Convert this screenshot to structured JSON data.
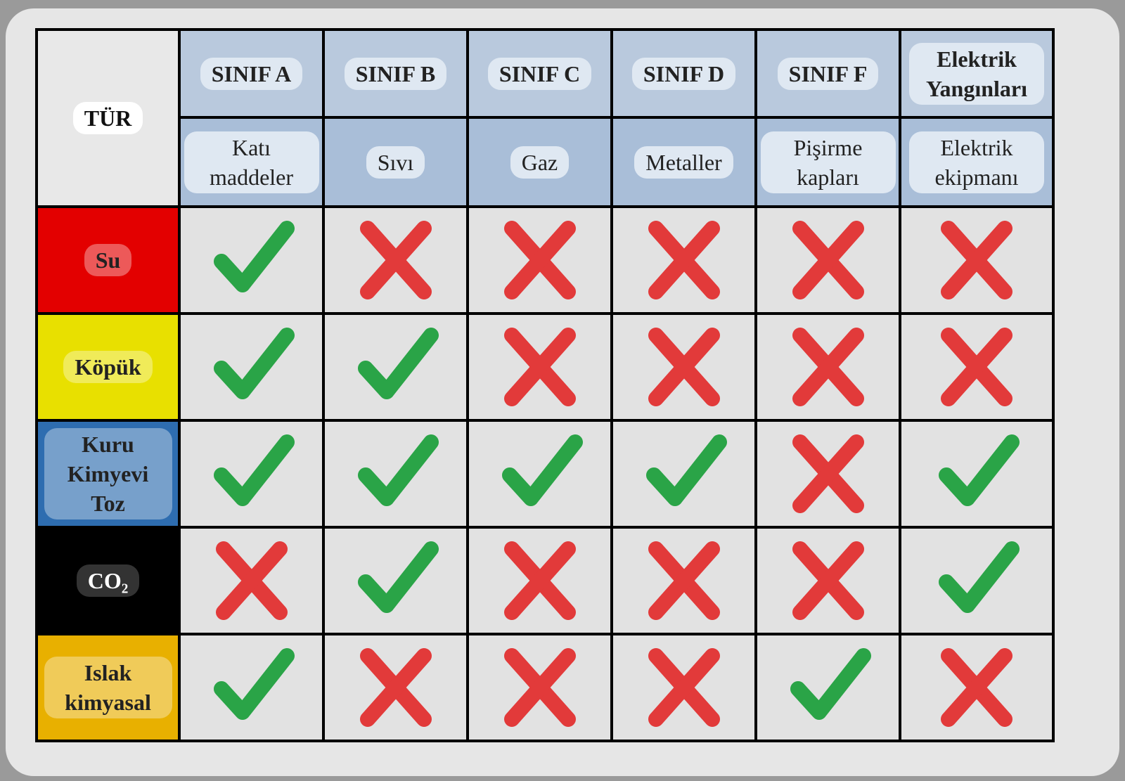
{
  "header": {
    "corner": "TÜR",
    "classes": [
      {
        "name": "SINIF A",
        "material": "Katı maddeler"
      },
      {
        "name": "SINIF B",
        "material": "Sıvı"
      },
      {
        "name": "SINIF C",
        "material": "Gaz"
      },
      {
        "name": "SINIF D",
        "material": "Metaller"
      },
      {
        "name": "SINIF F",
        "material": "Pişirme kapları"
      },
      {
        "name": "Elektrik Yangınları",
        "material": "Elektrik ekipmanı"
      }
    ]
  },
  "rows": [
    {
      "agent": "Su",
      "color": "#e30000",
      "suitable": [
        true,
        false,
        false,
        false,
        false,
        false
      ]
    },
    {
      "agent": "Köpük",
      "color": "#e8e000",
      "suitable": [
        true,
        true,
        false,
        false,
        false,
        false
      ]
    },
    {
      "agent": "Kuru Kimyevi Toz",
      "color": "#2e6db0",
      "suitable": [
        true,
        true,
        true,
        true,
        false,
        true
      ]
    },
    {
      "agent": "CO₂",
      "color": "#000000",
      "suitable": [
        false,
        true,
        false,
        false,
        false,
        true
      ]
    },
    {
      "agent": "Islak kimyasal",
      "color": "#e8b000",
      "suitable": [
        true,
        false,
        false,
        false,
        true,
        false
      ]
    }
  ]
}
